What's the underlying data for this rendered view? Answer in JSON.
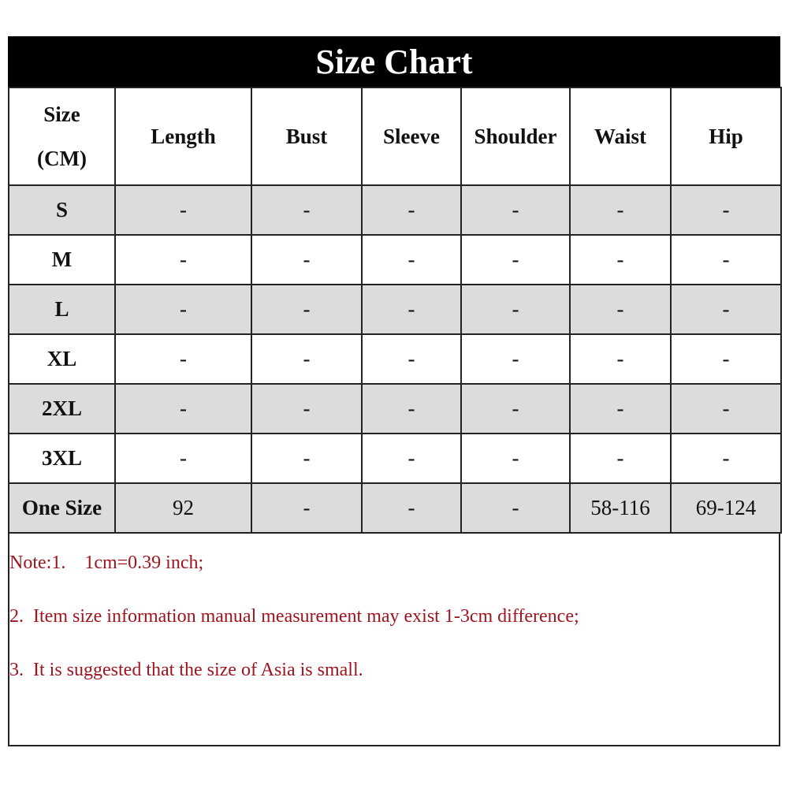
{
  "title": "Size Chart",
  "columns": [
    "Size (CM)",
    "Length",
    "Bust",
    "Sleeve",
    "Shoulder",
    "Waist",
    "Hip"
  ],
  "rows": [
    [
      "S",
      "-",
      "-",
      "-",
      "-",
      "-",
      "-"
    ],
    [
      "M",
      "-",
      "-",
      "-",
      "-",
      "-",
      "-"
    ],
    [
      "L",
      "-",
      "-",
      "-",
      "-",
      "-",
      "-"
    ],
    [
      "XL",
      "-",
      "-",
      "-",
      "-",
      "-",
      "-"
    ],
    [
      "2XL",
      "-",
      "-",
      "-",
      "-",
      "-",
      "-"
    ],
    [
      "3XL",
      "-",
      "-",
      "-",
      "-",
      "-",
      "-"
    ],
    [
      "One Size",
      "92",
      "-",
      "-",
      "-",
      "58-116",
      "69-124"
    ]
  ],
  "notes": [
    "Note:1.    1cm=0.39 inch;",
    "2.  Item size information manual measurement may exist 1-3cm difference;",
    "3.  It is suggested that the size of Asia is small."
  ],
  "colors": {
    "title_bg": "#000000",
    "shaded_row": "#dcdcdc",
    "note_text": "#a0141e"
  }
}
